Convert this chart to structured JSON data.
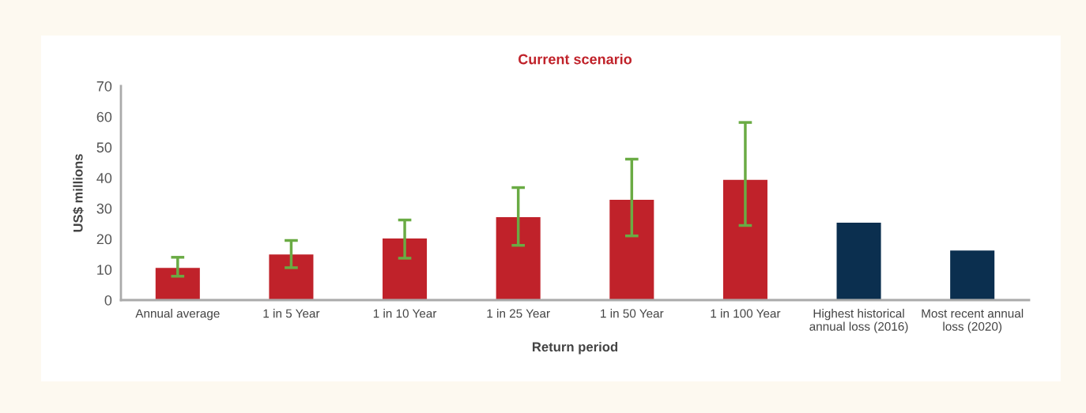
{
  "chart_data": {
    "type": "bar",
    "title": "Current scenario",
    "xlabel": "Return period",
    "ylabel": "US$ millions",
    "categories": [
      "Annual average",
      "1 in 5 Year",
      "1 in 10 Year",
      "1 in 25 Year",
      "1 in 50 Year",
      "1 in 100 Year",
      "Highest historical\nannual loss (2016)",
      "Most recent annual\nloss (2020)"
    ],
    "values": [
      10.7,
      15.1,
      20.3,
      27.3,
      33.0,
      39.5,
      25.5,
      16.4
    ],
    "colors": [
      "#c0222a",
      "#c0222a",
      "#c0222a",
      "#c0222a",
      "#c0222a",
      "#c0222a",
      "#0b2f4f",
      "#0b2f4f"
    ],
    "errors": [
      [
        7.8,
        14.0
      ],
      [
        10.6,
        19.5
      ],
      [
        13.7,
        26.2
      ],
      [
        17.9,
        36.8
      ],
      [
        21.0,
        46.1
      ],
      [
        24.4,
        58.1
      ],
      null,
      null
    ],
    "ylim": [
      0,
      70
    ],
    "yticks": [
      0,
      10,
      20,
      30,
      40,
      50,
      60,
      70
    ]
  }
}
